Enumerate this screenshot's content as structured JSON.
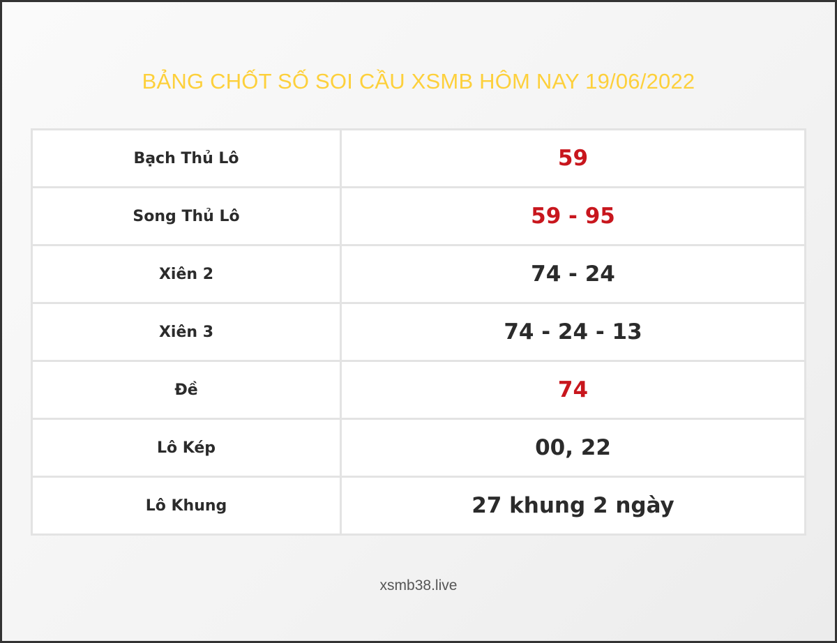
{
  "title": "BẢNG CHỐT SỐ SOI CẦU XSMB HÔM NAY 19/06/2022",
  "colors": {
    "title": "#fdd03b",
    "highlight": "#c8161d",
    "text": "#2b2b2b"
  },
  "rows": [
    {
      "label": "Bạch Thủ Lô",
      "value": "59",
      "highlight": true
    },
    {
      "label": "Song Thủ Lô",
      "value": "59 - 95",
      "highlight": true
    },
    {
      "label": "Xiên 2",
      "value": "74 - 24",
      "highlight": false
    },
    {
      "label": "Xiên 3",
      "value": "74 - 24 - 13",
      "highlight": false
    },
    {
      "label": "Đề",
      "value": "74",
      "highlight": true
    },
    {
      "label": "Lô Kép",
      "value": "00, 22",
      "highlight": false
    },
    {
      "label": "Lô Khung",
      "value": "27 khung 2 ngày",
      "highlight": false
    }
  ],
  "footer": "xsmb38.live"
}
